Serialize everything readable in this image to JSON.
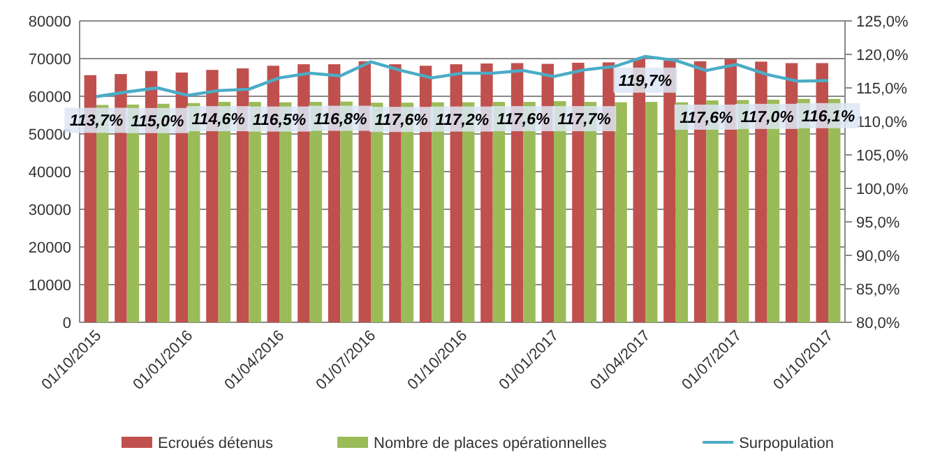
{
  "chart_data": {
    "type": "bar",
    "categories": [
      "01/10/2015",
      null,
      null,
      "01/01/2016",
      null,
      null,
      "01/04/2016",
      null,
      null,
      "01/07/2016",
      null,
      null,
      "01/10/2016",
      null,
      null,
      "01/01/2017",
      null,
      null,
      "01/04/2017",
      null,
      null,
      "01/07/2017",
      null,
      null,
      "01/10/2017"
    ],
    "series": [
      {
        "name": "Ecroués détenus",
        "color": "#c0504d",
        "values": [
          65600,
          65900,
          66700,
          66300,
          67000,
          67400,
          68100,
          68500,
          68500,
          69300,
          68500,
          68100,
          68500,
          68700,
          68800,
          68600,
          68900,
          69000,
          70000,
          69500,
          69300,
          69900,
          69200,
          68800,
          68800
        ]
      },
      {
        "name": "Nombre de places opérationnelles",
        "color": "#9bbb59",
        "values": [
          57700,
          57800,
          58000,
          58200,
          58500,
          58500,
          58400,
          58500,
          58600,
          58300,
          58300,
          58400,
          58400,
          58500,
          58500,
          58700,
          58500,
          58400,
          58500,
          58400,
          58900,
          59000,
          59100,
          59300,
          59300
        ]
      },
      {
        "name": "Surpopulation",
        "type": "line",
        "axis": "y2",
        "color": "#4bacc6",
        "marker": "none",
        "values": [
          113.7,
          114.4,
          115.0,
          113.9,
          114.6,
          114.8,
          116.5,
          117.2,
          116.8,
          118.9,
          117.6,
          116.5,
          117.2,
          117.2,
          117.6,
          116.7,
          117.7,
          118.2,
          119.7,
          119.1,
          117.6,
          118.5,
          117.0,
          116.0,
          116.1
        ],
        "value_labels": [
          "113,7%",
          null,
          "115,0%",
          null,
          "114,6%",
          null,
          "116,5%",
          null,
          "116,8%",
          null,
          "117,6%",
          null,
          "117,2%",
          null,
          "117,6%",
          null,
          "117,7%",
          null,
          "119,7%",
          null,
          "117,6%",
          null,
          "117,0%",
          null,
          "116,1%"
        ]
      }
    ],
    "ylim": [
      0,
      80000
    ],
    "yticks": [
      0,
      10000,
      20000,
      30000,
      40000,
      50000,
      60000,
      70000,
      80000
    ],
    "y2lim": [
      80,
      125
    ],
    "y2ticks": [
      {
        "value": 80,
        "label": "80,0%"
      },
      {
        "value": 85,
        "label": "85,0%"
      },
      {
        "value": 90,
        "label": "90,0%"
      },
      {
        "value": 95,
        "label": "95,0%"
      },
      {
        "value": 100,
        "label": "100,0%"
      },
      {
        "value": 105,
        "label": "105,0%"
      },
      {
        "value": 110,
        "label": "110,0%"
      },
      {
        "value": 115,
        "label": "115,0%"
      },
      {
        "value": 120,
        "label": "120,0%"
      },
      {
        "value": 125,
        "label": "125,0%"
      }
    ],
    "grid": "y",
    "legend": "bottom"
  }
}
